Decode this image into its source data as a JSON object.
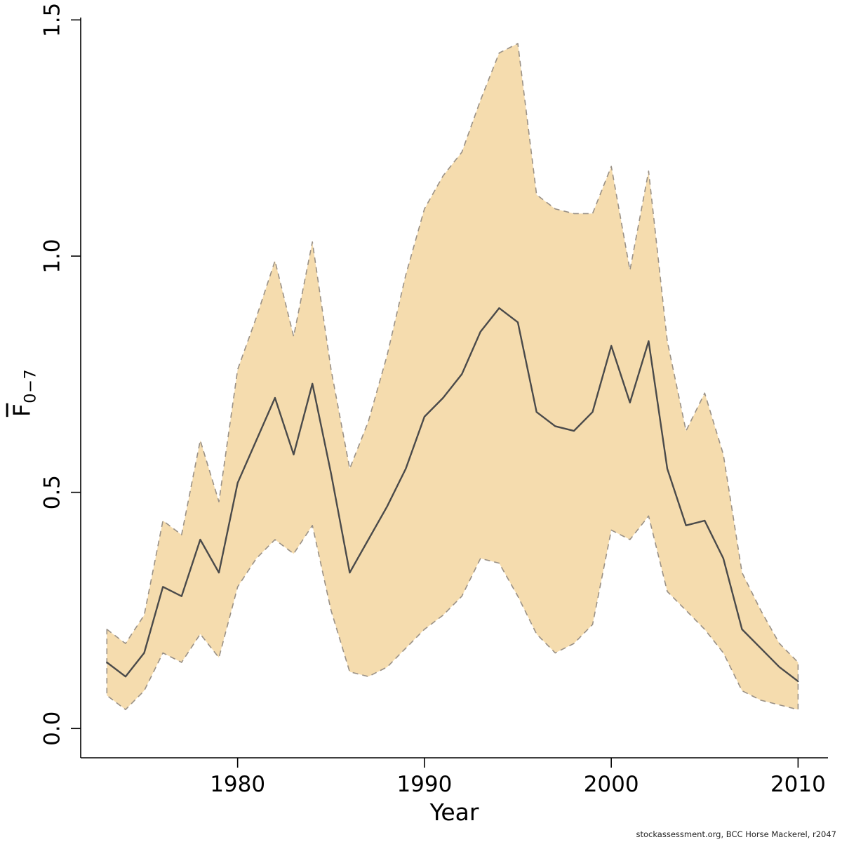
{
  "chart_data": {
    "type": "line",
    "title": "",
    "xlabel": "Year",
    "ylabel_main": "F",
    "ylabel_sub": "0−7",
    "grid": false,
    "legend": "none",
    "xlim": [
      1971.6,
      2011.6
    ],
    "ylim": [
      -0.062,
      1.505
    ],
    "xticks": [
      1980,
      1990,
      2000,
      2010
    ],
    "xtick_labels": [
      "1980",
      "1990",
      "2000",
      "2010"
    ],
    "yticks": [
      0,
      0.5,
      1,
      1.5
    ],
    "ytick_labels": [
      "0.0",
      "0.5",
      "1.0",
      "1.5"
    ],
    "x": [
      1973,
      1974,
      1975,
      1976,
      1977,
      1978,
      1979,
      1980,
      1981,
      1982,
      1983,
      1984,
      1985,
      1986,
      1987,
      1988,
      1989,
      1990,
      1991,
      1992,
      1993,
      1994,
      1995,
      1996,
      1997,
      1998,
      1999,
      2000,
      2001,
      2002,
      2003,
      2004,
      2005,
      2006,
      2007,
      2008,
      2009,
      2010
    ],
    "series": [
      {
        "name": "median",
        "values": [
          0.14,
          0.11,
          0.16,
          0.3,
          0.28,
          0.4,
          0.33,
          0.52,
          0.61,
          0.7,
          0.58,
          0.73,
          0.54,
          0.33,
          0.4,
          0.47,
          0.55,
          0.66,
          0.7,
          0.75,
          0.84,
          0.89,
          0.86,
          0.67,
          0.64,
          0.63,
          0.67,
          0.81,
          0.69,
          0.82,
          0.55,
          0.43,
          0.44,
          0.36,
          0.21,
          0.17,
          0.13,
          0.1
        ]
      },
      {
        "name": "upper_ci",
        "values": [
          0.21,
          0.18,
          0.24,
          0.44,
          0.41,
          0.61,
          0.48,
          0.76,
          0.87,
          0.99,
          0.83,
          1.03,
          0.76,
          0.55,
          0.65,
          0.79,
          0.96,
          1.1,
          1.17,
          1.22,
          1.33,
          1.43,
          1.45,
          1.13,
          1.1,
          1.09,
          1.09,
          1.19,
          0.97,
          1.18,
          0.82,
          0.63,
          0.71,
          0.58,
          0.33,
          0.25,
          0.18,
          0.14
        ]
      },
      {
        "name": "lower_ci",
        "values": [
          0.07,
          0.04,
          0.08,
          0.16,
          0.14,
          0.2,
          0.15,
          0.3,
          0.36,
          0.4,
          0.37,
          0.43,
          0.25,
          0.12,
          0.11,
          0.13,
          0.17,
          0.21,
          0.24,
          0.28,
          0.36,
          0.35,
          0.28,
          0.2,
          0.16,
          0.18,
          0.22,
          0.42,
          0.4,
          0.45,
          0.29,
          0.25,
          0.21,
          0.16,
          0.08,
          0.06,
          0.05,
          0.04
        ]
      }
    ],
    "colors": {
      "background": "#ffffff",
      "band_fill": "#f5dcae",
      "band_border": "#9a9186",
      "line": "#4a4a4a",
      "axis": "#000000"
    }
  },
  "footer": {
    "credit": "stockassessment.org, BCC Horse Mackerel, r2047"
  }
}
